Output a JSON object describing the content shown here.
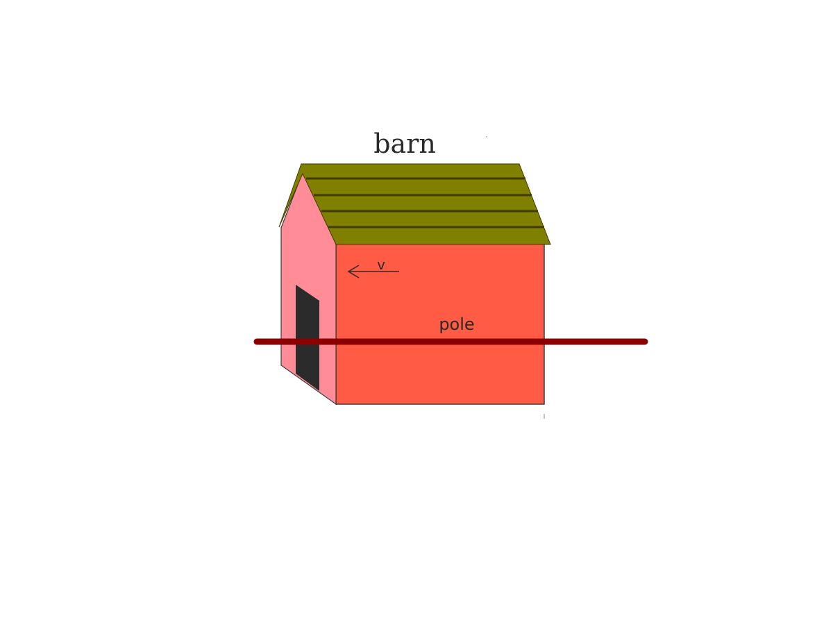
{
  "labels": {
    "barn": "barn",
    "pole": "pole",
    "velocity": "v"
  },
  "colors": {
    "background": "#ffffff",
    "roof": "#817f00",
    "roof_stripe": "#3f3b00",
    "wall_front": "#ff5b45",
    "wall_side": "#ff8c96",
    "door": "#2b2b2b",
    "pole": "#8b0000",
    "text": "#2a2a2a",
    "outline": "#3a3a3a"
  }
}
